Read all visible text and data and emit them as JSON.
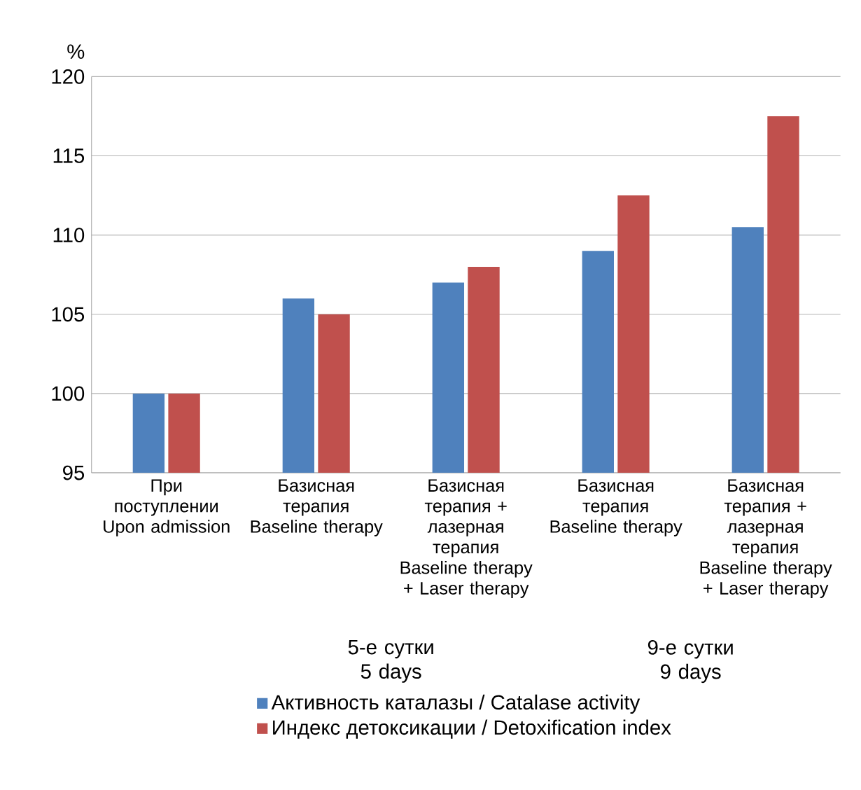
{
  "chart_data": {
    "type": "bar",
    "ylabel": "%",
    "categories": [
      "При поступлении Upon admission",
      "Базисная терапия Baseline therapy",
      "Базисная терапия + лазерная терапия Baseline therapy + Laser therapy",
      "Базисная терапия Baseline therapy",
      "Базисная терапия + лазерная терапия Baseline therapy + Laser therapy"
    ],
    "series": [
      {
        "name": "Активность каталазы / Catalase activity",
        "color": "#4f81bd",
        "values": [
          100,
          106,
          107,
          109,
          110.5
        ]
      },
      {
        "name": "Индекс детоксикации / Detoxification index",
        "color": "#c0504d",
        "values": [
          100,
          105,
          108,
          112.5,
          117.5
        ]
      }
    ],
    "ylim": [
      95,
      120
    ],
    "yticks": [
      95,
      100,
      105,
      110,
      115,
      120
    ],
    "grid": "y",
    "legend": "bottom",
    "annotations": [
      "5-е сутки 5 days",
      "9-е сутки 9 days"
    ]
  }
}
